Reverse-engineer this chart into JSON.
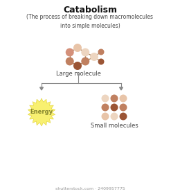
{
  "title": "Catabolism",
  "subtitle": "(The process of breaking down macromolecules\ninto simple molecules)",
  "large_molecule_label": "Large molecule",
  "small_molecules_label": "Small molecules",
  "energy_label": "Energy",
  "watermark": "shutterstock.com · 2409957775",
  "bg_color": "#ffffff",
  "title_fontsize": 9,
  "subtitle_fontsize": 5.5,
  "label_fontsize": 6,
  "watermark_fontsize": 4.5,
  "mc_light_peach": "#E8C4A8",
  "mc_pale_pink": "#EDD5C0",
  "mc_medium_brown": "#C08060",
  "mc_dark_brown": "#9B5535",
  "mc_rose": "#D4907A",
  "mc_peach2": "#D4A882",
  "bond_color": "#A07850",
  "arrow_color": "#888888",
  "sun_color": "#F8F070",
  "sun_edge_color": "#E0D030",
  "energy_text_color": "#888830"
}
